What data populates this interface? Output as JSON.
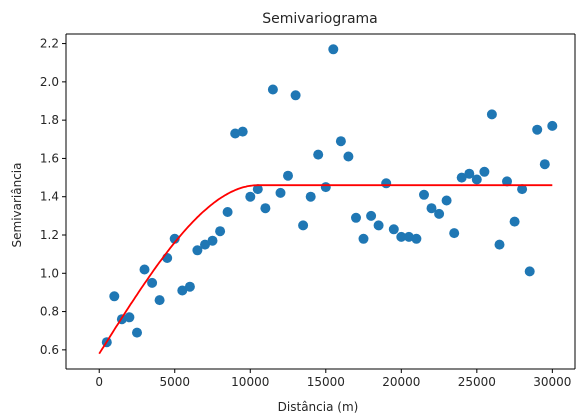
{
  "chart_data": {
    "type": "scatter",
    "title": "Semivariograma",
    "xlabel": "Distância (m)",
    "ylabel": "Semivariância",
    "xlim": [
      -2200,
      31500
    ],
    "ylim": [
      0.5,
      2.25
    ],
    "xticks": [
      0,
      5000,
      10000,
      15000,
      20000,
      25000,
      30000
    ],
    "yticks": [
      0.6,
      0.8,
      1.0,
      1.2,
      1.4,
      1.6,
      1.8,
      2.0,
      2.2
    ],
    "xtick_labels": [
      "0",
      "5000",
      "10000",
      "15000",
      "20000",
      "25000",
      "30000"
    ],
    "ytick_labels": [
      "0.6",
      "0.8",
      "1.0",
      "1.2",
      "1.4",
      "1.6",
      "1.8",
      "2.0",
      "2.2"
    ],
    "grid": false,
    "legend": "none",
    "series": [
      {
        "kind": "scatter",
        "color": "#1f77b4",
        "points": [
          [
            500,
            0.64
          ],
          [
            1000,
            0.88
          ],
          [
            1500,
            0.76
          ],
          [
            2000,
            0.77
          ],
          [
            2500,
            0.69
          ],
          [
            3000,
            1.02
          ],
          [
            3500,
            0.95
          ],
          [
            4000,
            0.86
          ],
          [
            4500,
            1.08
          ],
          [
            5000,
            1.18
          ],
          [
            5500,
            0.91
          ],
          [
            6000,
            0.93
          ],
          [
            6500,
            1.12
          ],
          [
            7000,
            1.15
          ],
          [
            7500,
            1.17
          ],
          [
            8000,
            1.22
          ],
          [
            8500,
            1.32
          ],
          [
            9000,
            1.73
          ],
          [
            9500,
            1.74
          ],
          [
            10000,
            1.4
          ],
          [
            10500,
            1.44
          ],
          [
            11000,
            1.34
          ],
          [
            11500,
            1.96
          ],
          [
            12000,
            1.42
          ],
          [
            12500,
            1.51
          ],
          [
            13000,
            1.93
          ],
          [
            13500,
            1.25
          ],
          [
            14000,
            1.4
          ],
          [
            14500,
            1.62
          ],
          [
            15000,
            1.45
          ],
          [
            15500,
            2.17
          ],
          [
            16000,
            1.69
          ],
          [
            16500,
            1.61
          ],
          [
            17000,
            1.29
          ],
          [
            17500,
            1.18
          ],
          [
            18000,
            1.3
          ],
          [
            18500,
            1.25
          ],
          [
            19000,
            1.47
          ],
          [
            19500,
            1.23
          ],
          [
            20000,
            1.19
          ],
          [
            20500,
            1.19
          ],
          [
            21000,
            1.18
          ],
          [
            21500,
            1.41
          ],
          [
            22000,
            1.34
          ],
          [
            22500,
            1.31
          ],
          [
            23000,
            1.38
          ],
          [
            23500,
            1.21
          ],
          [
            24000,
            1.5
          ],
          [
            24500,
            1.52
          ],
          [
            25000,
            1.49
          ],
          [
            25500,
            1.53
          ],
          [
            26000,
            1.83
          ],
          [
            26500,
            1.15
          ],
          [
            27000,
            1.48
          ],
          [
            27500,
            1.27
          ],
          [
            28000,
            1.44
          ],
          [
            28500,
            1.01
          ],
          [
            29000,
            1.75
          ],
          [
            29500,
            1.57
          ],
          [
            30000,
            1.77
          ]
        ]
      },
      {
        "kind": "line",
        "color": "#ff0000",
        "model": {
          "type": "spherical",
          "nugget": 0.58,
          "sill": 1.46,
          "range": 10500,
          "x_start": 0,
          "x_end": 30000
        }
      }
    ]
  }
}
